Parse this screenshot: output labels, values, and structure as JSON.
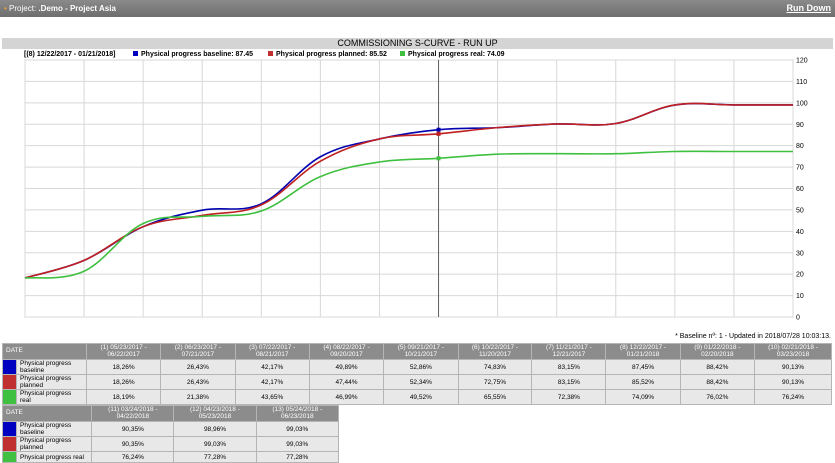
{
  "topbar": {
    "project_prefix": "Project:",
    "project_name": ".Demo - Project Asia",
    "run_down": "Run Down"
  },
  "chart_data": {
    "type": "line",
    "title": "COMMISSIONING S-CURVE - RUN UP",
    "legend_period": "[(8) 12/22/2017 - 01/21/2018]",
    "legend_entries": [
      "Physical progress baseline: 87.45",
      "Physical progress planned: 85.52",
      "Physical progress real: 74.09"
    ],
    "yticks": [
      0,
      10,
      20,
      30,
      40,
      50,
      60,
      70,
      80,
      90,
      100,
      110,
      120
    ],
    "ylim": [
      0,
      120
    ],
    "xlim": [
      0,
      13
    ],
    "grid": true,
    "y_axis_side": "right",
    "cursor_x": 7,
    "series": [
      {
        "name": "Physical progress baseline",
        "color": "#0000b0",
        "x": [
          0,
          1,
          2,
          3,
          4,
          5,
          6,
          7,
          8,
          9,
          10,
          11,
          12,
          13
        ],
        "values": [
          18.26,
          26.43,
          42.17,
          49.89,
          52.86,
          74.83,
          83.15,
          87.45,
          88.42,
          90.13,
          90.35,
          98.96,
          99.03,
          99.03
        ]
      },
      {
        "name": "Physical progress planned",
        "color": "#c02020",
        "x": [
          0,
          1,
          2,
          3,
          4,
          5,
          6,
          7,
          8,
          9,
          10,
          11,
          12,
          13
        ],
        "values": [
          18.26,
          26.43,
          42.17,
          47.44,
          52.34,
          72.75,
          83.15,
          85.52,
          88.42,
          90.13,
          90.35,
          99.03,
          99.03,
          99.03
        ]
      },
      {
        "name": "Physical progress real",
        "color": "#40c040",
        "x": [
          0,
          1,
          2,
          3,
          4,
          5,
          6,
          7,
          8,
          9,
          10,
          11,
          12,
          13
        ],
        "values": [
          18.19,
          21.38,
          43.65,
          46.99,
          49.52,
          65.55,
          72.38,
          74.09,
          76.02,
          76.24,
          76.24,
          77.28,
          77.28,
          77.28
        ]
      }
    ]
  },
  "footnote": "* Baseline nº: 1 - Updated in 2018/07/28 10:03:13.",
  "table1": {
    "header": "DATE",
    "columns": [
      "(1) 05/23/2017 - 06/22/2017",
      "(2) 06/23/2017 - 07/21/2017",
      "(3) 07/22/2017 - 08/21/2017",
      "(4) 08/22/2017 - 09/20/2017",
      "(5) 09/21/2017 - 10/21/2017",
      "(6) 10/22/2017 - 11/20/2017",
      "(7) 11/21/2017 - 12/21/2017",
      "(8) 12/22/2017 - 01/21/2018",
      "(9) 01/22/2018 - 02/20/2018",
      "(10) 02/21/2018 - 03/23/2018"
    ],
    "rows": [
      {
        "label": "Physical progress baseline",
        "color": "#0000c0",
        "values": [
          "18,26%",
          "26,43%",
          "42,17%",
          "49,89%",
          "52,86%",
          "74,83%",
          "83,15%",
          "87,45%",
          "88,42%",
          "90,13%"
        ]
      },
      {
        "label": "Physical progress planned",
        "color": "#c03030",
        "values": [
          "18,26%",
          "26,43%",
          "42,17%",
          "47,44%",
          "52,34%",
          "72,75%",
          "83,15%",
          "85,52%",
          "88,42%",
          "90,13%"
        ]
      },
      {
        "label": "Physical progress real",
        "color": "#40c040",
        "values": [
          "18,19%",
          "21,38%",
          "43,65%",
          "46,99%",
          "49,52%",
          "65,55%",
          "72,38%",
          "74,09%",
          "76,02%",
          "76,24%"
        ]
      }
    ]
  },
  "table2": {
    "header": "DATE",
    "columns": [
      "(11) 03/24/2018 - 04/22/2018",
      "(12) 04/23/2018 - 05/23/2018",
      "(13) 05/24/2018 - 06/23/2018"
    ],
    "rows": [
      {
        "label": "Physical progress baseline",
        "color": "#0000c0",
        "values": [
          "90,35%",
          "98,96%",
          "99,03%"
        ]
      },
      {
        "label": "Physical progress planned",
        "color": "#c03030",
        "values": [
          "90,35%",
          "99,03%",
          "99,03%"
        ]
      },
      {
        "label": "Physical progress real",
        "color": "#40c040",
        "values": [
          "76,24%",
          "77,28%",
          "77,28%"
        ]
      }
    ]
  }
}
